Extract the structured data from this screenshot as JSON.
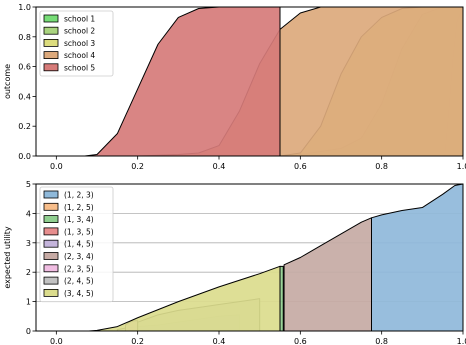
{
  "chart_data": [
    {
      "type": "area",
      "ylabel": "outcome",
      "xlim": [
        -0.05,
        1.0
      ],
      "ylim": [
        0.0,
        1.0
      ],
      "xticks": [
        "0.0",
        "0.2",
        "0.4",
        "0.6",
        "0.8",
        "1.0"
      ],
      "yticks": [
        "0.0",
        "0.2",
        "0.4",
        "0.6",
        "0.8",
        "1.0"
      ],
      "grid": false,
      "legend_position": "top-left",
      "series": [
        {
          "name": "school 1",
          "color": "#77dd77",
          "x": [
            0.955,
            0.965,
            0.975,
            0.985,
            1.0
          ],
          "y": [
            0.0,
            0.3,
            0.65,
            0.9,
            1.0
          ]
        },
        {
          "name": "school 2",
          "color": "#aad47f",
          "x": [
            0.55,
            0.6,
            0.65,
            0.7,
            0.75,
            0.8,
            0.85,
            0.9,
            0.95,
            1.0
          ],
          "y": [
            0.0,
            0.01,
            0.03,
            0.05,
            0.12,
            0.35,
            0.72,
            0.95,
            1.0,
            1.0
          ]
        },
        {
          "name": "school 3",
          "color": "#dcdc7e",
          "x": [
            0.55,
            0.6,
            0.65,
            0.7,
            0.75,
            0.8,
            0.85,
            0.9,
            0.95,
            1.0
          ],
          "y": [
            0.0,
            0.02,
            0.2,
            0.55,
            0.8,
            0.93,
            0.99,
            1.0,
            1.0,
            1.0
          ]
        },
        {
          "name": "school 4",
          "color": "#dca97c",
          "x": [
            0.2,
            0.25,
            0.3,
            0.35,
            0.4,
            0.45,
            0.5,
            0.55,
            0.6,
            0.65,
            0.7,
            1.0
          ],
          "y": [
            0.0,
            0.005,
            0.01,
            0.02,
            0.07,
            0.3,
            0.62,
            0.85,
            0.96,
            1.0,
            1.0,
            1.0
          ]
        },
        {
          "name": "school 5",
          "color": "#d67b79",
          "x": [
            0.07,
            0.1,
            0.15,
            0.2,
            0.25,
            0.3,
            0.35,
            0.4,
            0.5,
            0.55
          ],
          "y": [
            0.0,
            0.01,
            0.15,
            0.45,
            0.75,
            0.93,
            0.99,
            1.0,
            1.0,
            1.0
          ]
        }
      ]
    },
    {
      "type": "area",
      "ylabel": "expected utility",
      "xlim": [
        -0.05,
        1.0
      ],
      "ylim": [
        0,
        5
      ],
      "xticks": [
        "0.0",
        "0.2",
        "0.4",
        "0.6",
        "0.8",
        "1.0"
      ],
      "yticks": [
        "0",
        "1",
        "2",
        "3",
        "4",
        "5"
      ],
      "grid": true,
      "legend_position": "top-left",
      "series": [
        {
          "name": "(1, 2, 3)",
          "color": "#8fb9da",
          "x": [
            0.775,
            0.8,
            0.85,
            0.9,
            0.95,
            0.98,
            1.0
          ],
          "y": [
            3.85,
            3.95,
            4.1,
            4.2,
            4.65,
            4.95,
            5.0
          ]
        },
        {
          "name": "(1, 2, 5)",
          "color": "#f7bd8a",
          "x": [],
          "y": []
        },
        {
          "name": "(1, 3, 4)",
          "color": "#90cf90",
          "x": [
            0.55,
            0.558
          ],
          "y": [
            2.2,
            2.2
          ]
        },
        {
          "name": "(1, 3, 5)",
          "color": "#e78e8e",
          "x": [],
          "y": []
        },
        {
          "name": "(1, 4, 5)",
          "color": "#c4b4db",
          "x": [
            0.15,
            0.17,
            0.2,
            0.25,
            0.3,
            0.35,
            0.4,
            0.45
          ],
          "y": [
            0.05,
            0.1,
            0.15,
            0.2,
            0.3,
            0.4,
            0.5,
            0.55
          ]
        },
        {
          "name": "(2, 3, 4)",
          "color": "#c6aaa4",
          "x": [
            0.56,
            0.6,
            0.65,
            0.7,
            0.75,
            0.775
          ],
          "y": [
            2.25,
            2.5,
            2.9,
            3.3,
            3.7,
            3.85
          ]
        },
        {
          "name": "(2, 3, 5)",
          "color": "#f0bde2",
          "x": [
            0.17,
            0.18,
            0.19,
            0.2
          ],
          "y": [
            0.2,
            0.3,
            0.35,
            0.35
          ]
        },
        {
          "name": "(2, 4, 5)",
          "color": "#c2c2c2",
          "x": [
            0.2,
            0.25,
            0.3,
            0.35,
            0.4,
            0.45,
            0.5
          ],
          "y": [
            0.3,
            0.55,
            0.7,
            0.8,
            0.9,
            1.0,
            1.1
          ]
        },
        {
          "name": "(3, 4, 5)",
          "color": "#dbdc8d",
          "x": [
            0.08,
            0.1,
            0.15,
            0.2,
            0.3,
            0.4,
            0.5,
            0.55
          ],
          "y": [
            0.0,
            0.02,
            0.15,
            0.45,
            1.0,
            1.5,
            1.95,
            2.2
          ]
        }
      ]
    }
  ]
}
